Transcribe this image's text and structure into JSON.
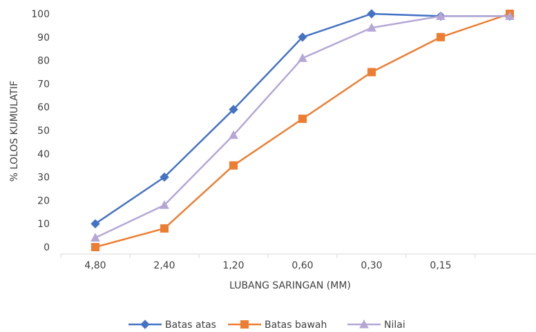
{
  "chart_data": {
    "type": "line",
    "categories": [
      "4,80",
      "2,40",
      "1,20",
      "0,60",
      "0,30",
      "0,15",
      ""
    ],
    "xlabel": "LUBANG SARINGAN (MM)",
    "ylabel": "% LOLOS KUMULATIF",
    "ylim": [
      0,
      100
    ],
    "yticks": [
      "0",
      "10",
      "20",
      "30",
      "40",
      "50",
      "60",
      "70",
      "80",
      "90",
      "100"
    ],
    "grid": false,
    "legend": "bottom",
    "series": [
      {
        "name": "Batas atas",
        "values": [
          10,
          30,
          59,
          90,
          100,
          99,
          99
        ],
        "color": "#4472c4",
        "marker": "diamond"
      },
      {
        "name": "Batas bawah",
        "values": [
          0,
          8,
          35,
          55,
          75,
          90,
          100
        ],
        "color": "#ed7d31",
        "marker": "square"
      },
      {
        "name": "Nilai",
        "values": [
          4,
          18,
          48,
          81,
          94,
          99,
          99
        ],
        "color": "#b4a7d6",
        "marker": "triangle"
      }
    ]
  }
}
